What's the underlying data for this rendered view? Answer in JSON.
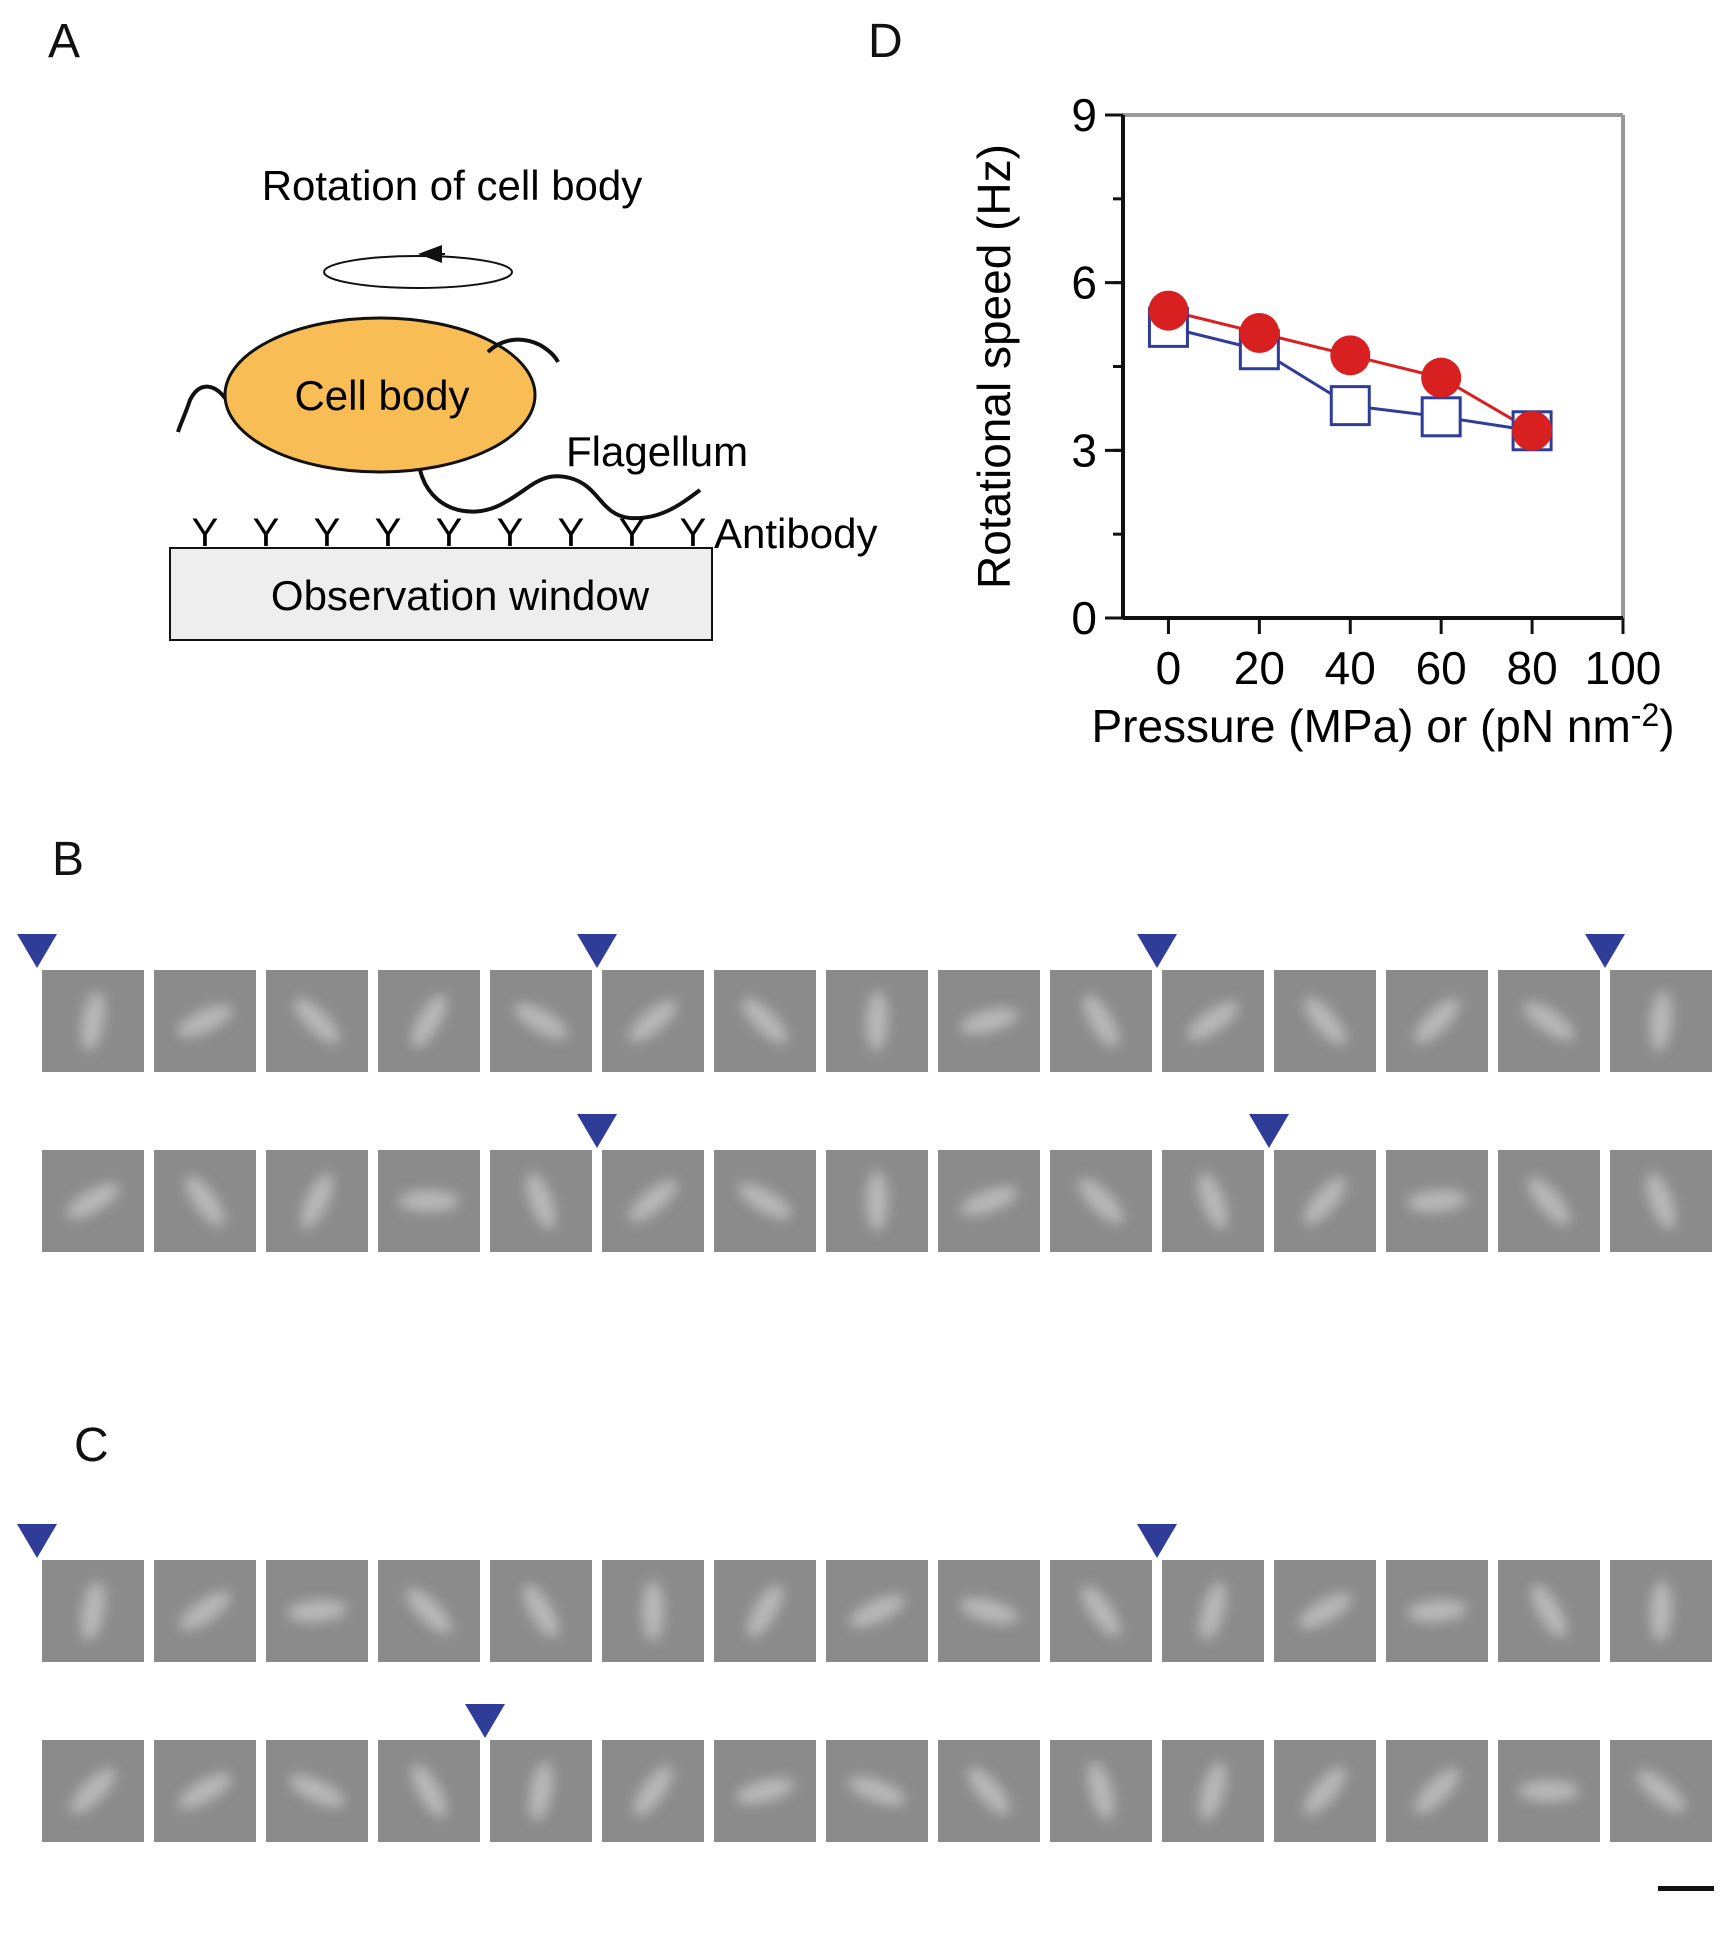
{
  "panels": {
    "a": {
      "label": "A",
      "rotation_label": "Rotation of cell body",
      "cell_label": "Cell body",
      "flagellum_label": "Flagellum",
      "antibody_label": "Antibody",
      "window_label": "Observation window",
      "antibody_symbol": "Y",
      "colors": {
        "cell": "#f8bd55",
        "window": "#eeeeee",
        "arrow": "#111111"
      }
    },
    "b": {
      "label": "B"
    },
    "c": {
      "label": "C"
    },
    "d": {
      "label": "D"
    }
  },
  "frames": {
    "per_row": 15,
    "marker_color": "#2f3d99",
    "rows": [
      {
        "panel": "b",
        "markers_before_frame": [
          0,
          5,
          10,
          14
        ],
        "angles": [
          80,
          25,
          -45,
          60,
          -30,
          40,
          -45,
          88,
          15,
          -60,
          35,
          -50,
          45,
          -35,
          85
        ]
      },
      {
        "panel": "b",
        "markers_before_frame": [
          5,
          11
        ],
        "angles": [
          30,
          -55,
          65,
          0,
          -70,
          40,
          -30,
          90,
          20,
          -45,
          -70,
          50,
          5,
          -50,
          -70
        ]
      },
      {
        "panel": "c",
        "markers_before_frame": [
          0,
          10
        ],
        "angles": [
          80,
          35,
          5,
          -45,
          -60,
          90,
          60,
          25,
          -15,
          -55,
          75,
          30,
          5,
          -60,
          88
        ]
      },
      {
        "panel": "c",
        "markers_before_frame": [
          4
        ],
        "angles": [
          45,
          30,
          -25,
          -60,
          80,
          55,
          15,
          -20,
          -50,
          -75,
          75,
          50,
          45,
          0,
          -40
        ]
      }
    ]
  },
  "chart_data": {
    "type": "line",
    "title": "",
    "xlabel": "Pressure (MPa) or (pN nm",
    "xlabel_superscript": "-2",
    "xlabel_suffix": ")",
    "ylabel": "Rotational speed (Hz)",
    "xlim": [
      -10,
      100
    ],
    "ylim": [
      0,
      9
    ],
    "xticks": [
      0,
      20,
      40,
      60,
      80,
      100
    ],
    "yticks": [
      0,
      3,
      6,
      9
    ],
    "x": [
      0,
      20,
      40,
      60,
      80
    ],
    "series": [
      {
        "name": "open-squares",
        "marker": "open-square",
        "color": "#2f3d99",
        "values": [
          5.2,
          4.8,
          3.8,
          3.6,
          3.35
        ]
      },
      {
        "name": "filled-circles",
        "marker": "filled-circle",
        "color": "#d82020",
        "values": [
          5.5,
          5.1,
          4.7,
          4.3,
          3.35
        ]
      }
    ]
  }
}
